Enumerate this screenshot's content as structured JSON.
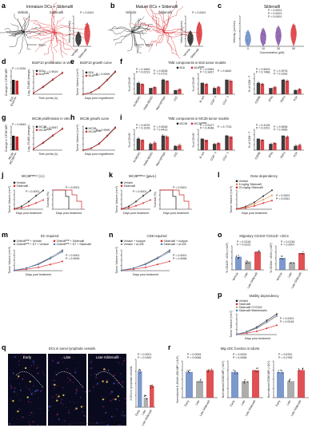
{
  "colors": {
    "black": "#1a1a1a",
    "red": "#d7262b",
    "blue": "#5b7fbf",
    "grey": "#999999",
    "orange": "#e58a3a",
    "purple": "#7b4aa0",
    "green": "#49a54a",
    "tan": "#caa472"
  },
  "panels": {
    "a": {
      "letter": "a",
      "title": "Immature DCs + Sildenafil",
      "vehicle": "Vehicle",
      "drug": "Sildenafil",
      "scale": "50μm",
      "pval": "P < 0.0001",
      "ylabel": "Velocity (μm/min)",
      "xcats": [
        "Vehicle",
        "Sildenafil"
      ]
    },
    "b": {
      "letter": "b",
      "title": "Mature DCs + Sildenafil",
      "vehicle": "Vehicle",
      "drug": "Sildenafil",
      "scale": "50μm",
      "pval": "P < 0.0001",
      "ylabel": "Velocity (μm/min)",
      "xcats": [
        "Vehicle",
        "Sildenafil"
      ]
    },
    "c": {
      "letter": "c",
      "title": "Sildenafil",
      "ylabel": "Velocity (μm/min)",
      "xlabel": "Concentration (μM)",
      "xcats": [
        "0",
        "10",
        "30",
        "50"
      ],
      "pvals": [
        "P < 0.0001",
        "P < 0.0001",
        "P < 0.0001"
      ]
    },
    "d": {
      "letter": "d",
      "title": "B16F10 proliferation in vitro",
      "ylabel_bar": "Change in CFSE MFI",
      "ylabel_line": "Log₂ FLAM (change)",
      "xlabel": "Time points (h)",
      "pvals": [
        "P = 0.3330",
        "P = 0.9619"
      ],
      "legend": [
        "B16",
        "B16ᴿᴼᴺᴷ"
      ],
      "xcats": [
        "B16",
        "B16ᴿᴼᴺᴷ"
      ]
    },
    "e": {
      "letter": "e",
      "title": "B16F10 growth curve",
      "ylabel": "Tumor Volume (mm³)",
      "xlabel": "Days post engraftment",
      "pval": "P = 0.9999",
      "legend": [
        "B16",
        "B16ᴿᴼᴺᴷ"
      ]
    },
    "f": {
      "letter": "f",
      "title": "TME components in B16 tumor models",
      "legend": [
        "B16",
        "B16ᴿᴼᴺᴷ"
      ],
      "groups": [
        {
          "ylabel": "% of CD45⁺",
          "cats": [
            "M-MDSC",
            "PMN-MDSC",
            "Macrophage",
            "cDC"
          ],
          "pvals": [
            "P = 0.1669",
            "P = 0.5538",
            "P = 0.0219",
            "P = 0.2721"
          ]
        },
        {
          "ylabel": "% of CD45⁺",
          "cats": [
            "B cell",
            "CD8⁺ T",
            "CD4⁺ T"
          ],
          "pvals": [
            "P = 0.0969",
            "P = 0.4842",
            "P = 0.3437"
          ]
        },
        {
          "ylabel": "% of CD8⁺ T",
          "cats": [
            "GZMB",
            "IFNγ",
            "TNFα",
            "TOX"
          ],
          "pvals": [
            "P = 0.5529",
            "P = 0.3976",
            "P = 0.7488",
            "P = 0.3183"
          ]
        }
      ]
    },
    "g": {
      "letter": "g",
      "title": "MC38 proliferation in vitro",
      "ylabel_bar": "Change in CFSE MFI",
      "ylabel_line": "Log₂ FLAM (change)",
      "xlabel": "Time points (h)",
      "pvals": [
        "P = 0.0649",
        "P = 0.9957"
      ],
      "legend": [
        "MC38",
        "MC38ᴿᴼᴺᴷ"
      ],
      "xcats": [
        "MC38",
        "MC38ᴿᴼᴺᴷ"
      ]
    },
    "h": {
      "letter": "h",
      "title": "MC38 growth curve",
      "ylabel": "Tumor Volume (mm³)",
      "xlabel": "Days post engraftment",
      "pval": "P = 0.9999",
      "legend": [
        "MC38",
        "MC38ᴿᴼᴺᴷ"
      ]
    },
    "i": {
      "letter": "i",
      "title": "TME components in MC38 tumor models",
      "legend": [
        "MC38",
        "MC38ᴿᴼᴺᴷ"
      ],
      "groups": [
        {
          "ylabel": "% of CD45⁺",
          "cats": [
            "M-MDSC",
            "PMN-MDSC",
            "Macrophage",
            "cDC"
          ],
          "pvals": [
            "P = 0.9576",
            "P = 0.5548",
            "P = 0.1028",
            "P = 0.4413"
          ]
        },
        {
          "ylabel": "% of CD45⁺",
          "cats": [
            "B cell",
            "CD8⁺ T",
            "CD4⁺ T"
          ],
          "pvals": [
            "P = 0.5127",
            "P = 0.7733",
            "P = 0.4048"
          ]
        },
        {
          "ylabel": "% of CD8⁺ T",
          "cats": [
            "GZMB",
            "IFNγ",
            "TNFα",
            "TOX"
          ],
          "pvals": [
            "P = 0.4128",
            "P = 0.9898",
            "P = 0.2201",
            "P = 0.3966"
          ]
        }
      ]
    },
    "j": {
      "letter": "j",
      "title": "MC38ᴾᴰᴱ⁵ᴬ (i.t.)",
      "legend": [
        "Vehicle",
        "Sildenafil"
      ],
      "ylabel1": "Tumor Volume (mm³)",
      "ylabel2": "Survival (%)",
      "xlabel": "Days post treatment",
      "pvals": [
        "P < 0.0001",
        "P < 0.0001"
      ]
    },
    "k": {
      "letter": "k",
      "title": "MC38ᴾᴰᴱ⁵ᴬ (gava.)",
      "legend": [
        "Vehicle",
        "Sildenafil"
      ],
      "ylabel1": "Tumor Volume (mm³)",
      "ylabel2": "Survival (%)",
      "xlabel": "Days post treatment",
      "pvals": [
        "P < 0.0001",
        "P < 0.0001"
      ]
    },
    "l": {
      "letter": "l",
      "title": "Dose dependency",
      "legend": [
        "Vehicle",
        "5 mg/kg Sildenafil",
        "20 mg/kg Sildenafil"
      ],
      "ylabel": "Tumor Volume (mm³)",
      "xlabel": "Days post treatment",
      "pvals": [
        "P = 0.0001",
        "P = 0.0261"
      ]
    },
    "m": {
      "letter": "m",
      "title": "DC required",
      "legend": [
        "Zbtb46ᴰᵀᴿ + Vehicle",
        "Zbtb46ᴰᵀᴿ + Sildenafil",
        "Zbtb46ᴰᵀᴿ + DT + Vehicle",
        "Zbtb46ᴰᵀᴿ + DT + Sildenafil"
      ],
      "ylabel": "Tumor Volume (mm³)",
      "xlabel": "Days post treatment",
      "pvals": [
        "P < 0.0001",
        "P = 0.9999"
      ]
    },
    "n": {
      "letter": "n",
      "title": "CD8 required",
      "legend": [
        "Vehicle + Isotype",
        "Sildenafil + Isotype",
        "Vehicle + αCD8",
        "Sildenafil + αCD8"
      ],
      "ylabel": "Tumor Volume (mm³)",
      "xlabel": "Days post treatment",
      "pvals": [
        "P < 0.0001",
        "P = 0.9998"
      ]
    },
    "o": {
      "letter": "o",
      "title": "Migratory CD103⁺/CD11b⁺ cDCs",
      "ylabel1": "% CD103⁺ cDCs (×10²)",
      "ylabel2": "% CD11b⁺ cDCs (×10²)",
      "cats": [
        "Vehicle",
        "Late",
        "Late Sildenafil"
      ],
      "pvals": [
        "P = 0.0318",
        "P = 0.0223",
        "P = 0.0136",
        "P = 0.0007"
      ]
    },
    "p": {
      "letter": "p",
      "title": "Motility dependency",
      "legend": [
        "Vehicle",
        "Sildenafil",
        "Sildenafil+Y27632",
        "Sildenafil+Blebbistatin"
      ],
      "ylabel": "Tumor Volume (mm³)",
      "xlabel": "Days post treatment",
      "pvals": [
        "P < 0.0001",
        "P = 0.0018"
      ]
    },
    "q": {
      "letter": "q",
      "title": "DCs in tumor lymphatic vessels",
      "tiles": [
        "Early",
        "Late",
        "Late Sildenafil"
      ],
      "channels": "CD11c MHC-II Lyve1 DAPI",
      "ylabel": "# DCs in lymphatic vessels",
      "cats": [
        "Early",
        "Late",
        "Late Sildenafil"
      ],
      "pvals": [
        "P < 0.0001",
        "P = 0.0262"
      ]
    },
    "r": {
      "letter": "r",
      "title": "Mig-cDC function in tdLNs",
      "cats": [
        "Early",
        "Late",
        "Late Sildenafil"
      ],
      "groups": [
        {
          "ylabel": "Normalized H-2Kb/H-2Db MFI (×10⁴)",
          "pvals": [
            "P = 0.0054",
            "P = 0.0066"
          ]
        },
        {
          "ylabel": "Normalized CD80 MFI (×10⁴)",
          "pvals": [
            "P = 0.0004",
            "P = 0.0056"
          ]
        },
        {
          "ylabel": "Normalized CD86 MFI (×10⁴)",
          "pvals": [
            "P = 0.8761",
            "P = 0.0765"
          ]
        }
      ]
    }
  },
  "chart_data": [
    {
      "type": "scatter",
      "panel": "a",
      "title": "Immature DCs + Sildenafil",
      "categories": [
        "Vehicle",
        "Sildenafil"
      ],
      "series": [
        {
          "values": [
            1.5,
            4.5
          ]
        }
      ],
      "ylabel": "Velocity (μm/min)",
      "ylim": [
        0,
        15
      ]
    },
    {
      "type": "scatter",
      "panel": "b",
      "title": "Mature DCs + Sildenafil",
      "categories": [
        "Vehicle",
        "Sildenafil"
      ],
      "series": [
        {
          "values": [
            2.0,
            5.0
          ]
        }
      ],
      "ylabel": "Velocity (μm/min)",
      "ylim": [
        0,
        15
      ]
    },
    {
      "type": "scatter",
      "panel": "c",
      "title": "Sildenafil",
      "categories": [
        "0",
        "10",
        "30",
        "50"
      ],
      "series": [
        {
          "values": [
            2.0,
            3.5,
            4.5,
            5.0
          ]
        }
      ],
      "xlabel": "Concentration (μM)",
      "ylabel": "Velocity (μm/min)",
      "ylim": [
        0,
        15
      ]
    },
    {
      "type": "line",
      "panel": "e",
      "title": "B16F10 growth curve",
      "x": [
        0,
        5,
        10,
        15,
        20
      ],
      "series": [
        {
          "name": "B16",
          "values": [
            0,
            150,
            650,
            1400,
            2300
          ]
        },
        {
          "name": "B16ᴿᴼᴺᴷ",
          "values": [
            0,
            140,
            620,
            1350,
            2250
          ]
        }
      ],
      "xlabel": "Days post engraftment",
      "ylabel": "Tumor Volume (mm³)"
    },
    {
      "type": "line",
      "panel": "h",
      "title": "MC38 growth curve",
      "x": [
        0,
        5,
        10,
        15,
        20
      ],
      "series": [
        {
          "name": "MC38",
          "values": [
            0,
            160,
            700,
            1500,
            2400
          ]
        },
        {
          "name": "MC38ᴿᴼᴺᴷ",
          "values": [
            0,
            150,
            680,
            1450,
            2350
          ]
        }
      ],
      "xlabel": "Days post engraftment",
      "ylabel": "Tumor Volume (mm³)"
    },
    {
      "type": "line",
      "panel": "j",
      "title": "MC38ᴾᴰᴱ⁵ᴬ (i.t.)",
      "x": [
        0,
        3,
        6,
        9,
        12
      ],
      "series": [
        {
          "name": "Vehicle",
          "values": [
            50,
            250,
            700,
            1300,
            1900
          ]
        },
        {
          "name": "Sildenafil",
          "values": [
            50,
            120,
            300,
            600,
            900
          ]
        }
      ],
      "xlabel": "Days post treatment",
      "ylabel": "Tumor Volume (mm³)"
    },
    {
      "type": "line",
      "panel": "k",
      "title": "MC38ᴾᴰᴱ⁵ᴬ (gava.)",
      "x": [
        0,
        3,
        6,
        9,
        12
      ],
      "series": [
        {
          "name": "Vehicle",
          "values": [
            50,
            280,
            750,
            1400,
            2000
          ]
        },
        {
          "name": "Sildenafil",
          "values": [
            50,
            130,
            320,
            650,
            950
          ]
        }
      ],
      "xlabel": "Days post treatment",
      "ylabel": "Tumor Volume (mm³)"
    },
    {
      "type": "line",
      "panel": "l",
      "title": "Dose dependency",
      "x": [
        0,
        3,
        6,
        9,
        12
      ],
      "series": [
        {
          "name": "Vehicle",
          "values": [
            50,
            300,
            800,
            1500,
            2200
          ]
        },
        {
          "name": "5 mg/kg Sildenafil",
          "values": [
            50,
            220,
            600,
            1100,
            1600
          ]
        },
        {
          "name": "20 mg/kg Sildenafil",
          "values": [
            50,
            150,
            380,
            700,
            1000
          ]
        }
      ],
      "xlabel": "Days post treatment",
      "ylabel": "Tumor Volume (mm³)"
    }
  ]
}
